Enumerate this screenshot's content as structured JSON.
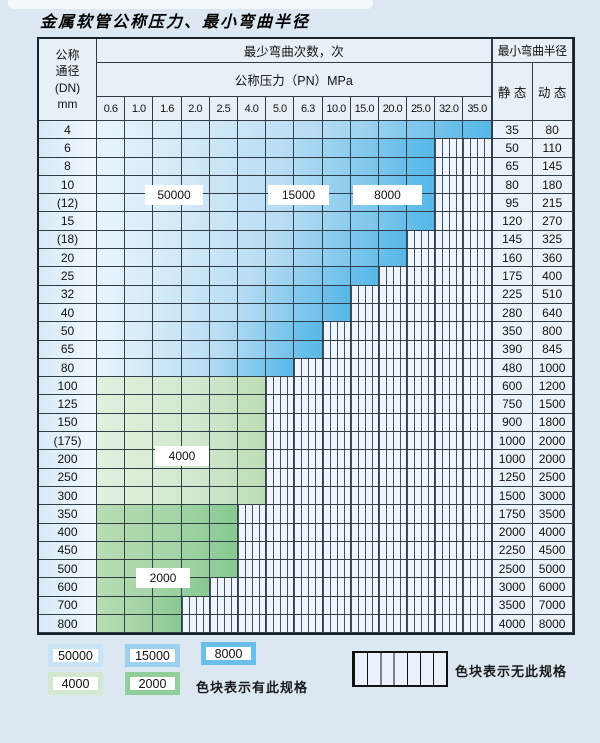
{
  "title": "金属软管公称压力、最小弯曲半径",
  "table": {
    "header": {
      "dn_label_lines": [
        "公称",
        "通径",
        "(DN)",
        "mm"
      ],
      "bend_cycles_label": "最少弯曲次数，次",
      "pressure_label": "公称压力（PN）MPa",
      "pressure_values": [
        "0.6",
        "1.0",
        "1.6",
        "2.0",
        "2.5",
        "4.0",
        "5.0",
        "6.3",
        "10.0",
        "15.0",
        "20.0",
        "25.0",
        "32.0",
        "35.0"
      ],
      "radius_label": "最小弯曲半径",
      "static_label": "静 态",
      "dynamic_label": "动 态"
    },
    "rows": [
      {
        "dn": "4",
        "colored": 14,
        "zone": "blue",
        "static": "35",
        "dynamic": "80"
      },
      {
        "dn": "6",
        "colored": 12,
        "zone": "blue",
        "static": "50",
        "dynamic": "110"
      },
      {
        "dn": "8",
        "colored": 12,
        "zone": "blue",
        "static": "65",
        "dynamic": "145"
      },
      {
        "dn": "10",
        "colored": 12,
        "zone": "blue",
        "static": "80",
        "dynamic": "180"
      },
      {
        "dn": "(12)",
        "colored": 12,
        "zone": "blue",
        "static": "95",
        "dynamic": "215"
      },
      {
        "dn": "15",
        "colored": 12,
        "zone": "blue",
        "static": "120",
        "dynamic": "270"
      },
      {
        "dn": "(18)",
        "colored": 11,
        "zone": "blue",
        "static": "145",
        "dynamic": "325"
      },
      {
        "dn": "20",
        "colored": 11,
        "zone": "blue",
        "static": "160",
        "dynamic": "360"
      },
      {
        "dn": "25",
        "colored": 10,
        "zone": "blue",
        "static": "175",
        "dynamic": "400"
      },
      {
        "dn": "32",
        "colored": 9,
        "zone": "blue",
        "static": "225",
        "dynamic": "510"
      },
      {
        "dn": "40",
        "colored": 9,
        "zone": "blue",
        "static": "280",
        "dynamic": "640"
      },
      {
        "dn": "50",
        "colored": 8,
        "zone": "blue",
        "static": "350",
        "dynamic": "800"
      },
      {
        "dn": "65",
        "colored": 8,
        "zone": "blue",
        "static": "390",
        "dynamic": "845"
      },
      {
        "dn": "80",
        "colored": 7,
        "zone": "blue",
        "static": "480",
        "dynamic": "1000"
      },
      {
        "dn": "100",
        "colored": 6,
        "zone": "green_light",
        "static": "600",
        "dynamic": "1200"
      },
      {
        "dn": "125",
        "colored": 6,
        "zone": "green_light",
        "static": "750",
        "dynamic": "1500"
      },
      {
        "dn": "150",
        "colored": 6,
        "zone": "green_light",
        "static": "900",
        "dynamic": "1800"
      },
      {
        "dn": "(175)",
        "colored": 6,
        "zone": "green_light",
        "static": "1000",
        "dynamic": "2000"
      },
      {
        "dn": "200",
        "colored": 6,
        "zone": "green_light",
        "static": "1000",
        "dynamic": "2000"
      },
      {
        "dn": "250",
        "colored": 6,
        "zone": "green_light",
        "static": "1250",
        "dynamic": "2500"
      },
      {
        "dn": "300",
        "colored": 6,
        "zone": "green_light",
        "static": "1500",
        "dynamic": "3000"
      },
      {
        "dn": "350",
        "colored": 5,
        "zone": "green_dark",
        "static": "1750",
        "dynamic": "3500"
      },
      {
        "dn": "400",
        "colored": 5,
        "zone": "green_dark",
        "static": "2000",
        "dynamic": "4000"
      },
      {
        "dn": "450",
        "colored": 5,
        "zone": "green_dark",
        "static": "2250",
        "dynamic": "4500"
      },
      {
        "dn": "500",
        "colored": 5,
        "zone": "green_dark",
        "static": "2500",
        "dynamic": "5000"
      },
      {
        "dn": "600",
        "colored": 4,
        "zone": "green_dark",
        "static": "3000",
        "dynamic": "6000"
      },
      {
        "dn": "700",
        "colored": 3,
        "zone": "green_dark",
        "static": "3500",
        "dynamic": "7000"
      },
      {
        "dn": "800",
        "colored": 3,
        "zone": "green_dark",
        "static": "4000",
        "dynamic": "8000"
      }
    ]
  },
  "overlays": [
    {
      "label": "50000"
    },
    {
      "label": "15000"
    },
    {
      "label": "8000"
    },
    {
      "label": "4000"
    },
    {
      "label": "2000"
    }
  ],
  "legend": {
    "items": [
      {
        "label": "50000",
        "color": "#c8e3f5"
      },
      {
        "label": "15000",
        "color": "#9bd1ef"
      },
      {
        "label": "8000",
        "color": "#69bfe9"
      },
      {
        "label": "4000",
        "color": "#d2e8cf"
      },
      {
        "label": "2000",
        "color": "#90cf99"
      }
    ],
    "has_spec_text": "色块表示有此规格",
    "no_spec_text": "色块表示无此规格"
  },
  "colors": {
    "grid_line": "#2e3d48",
    "hatch_bg": "#eef5fc",
    "zones": {
      "blue": [
        "#e9f4fc",
        "#b9ddf3",
        "#55b7e8"
      ],
      "green_light": [
        "#e2f0de",
        "#d3e8cf",
        "#bbdeb5"
      ],
      "green_dark": [
        "#b8dcb4",
        "#a3d4a6",
        "#88c991"
      ]
    }
  }
}
